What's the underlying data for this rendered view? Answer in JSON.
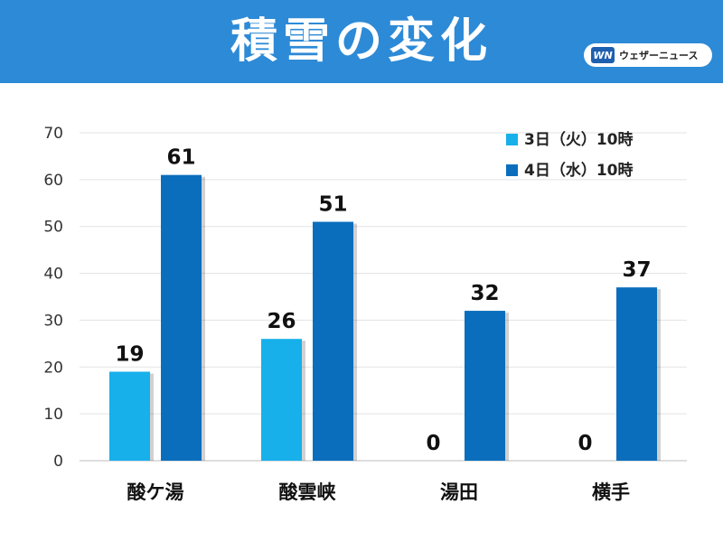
{
  "header": {
    "title": "積雪の変化",
    "logo_mark": "WN",
    "logo_text": "ウェザーニュース"
  },
  "colors": {
    "header_bg": "#2d8ad6",
    "series_light": "#17b0ea",
    "series_dark": "#0a6ebd"
  },
  "chart_data": {
    "type": "bar",
    "categories": [
      "酸ケ湯",
      "酸雲峡",
      "湯田",
      "横手"
    ],
    "series": [
      {
        "name": "3日（火）10時",
        "values": [
          19,
          26,
          0,
          0
        ],
        "color": "#17b0ea"
      },
      {
        "name": "4日（水）10時",
        "values": [
          61,
          51,
          32,
          37
        ],
        "color": "#0a6ebd"
      }
    ],
    "yticks": [
      0,
      10,
      20,
      30,
      40,
      50,
      60,
      70
    ],
    "ylim": [
      0,
      70
    ],
    "grid": true,
    "legend": "top-right",
    "data_labels": true
  }
}
